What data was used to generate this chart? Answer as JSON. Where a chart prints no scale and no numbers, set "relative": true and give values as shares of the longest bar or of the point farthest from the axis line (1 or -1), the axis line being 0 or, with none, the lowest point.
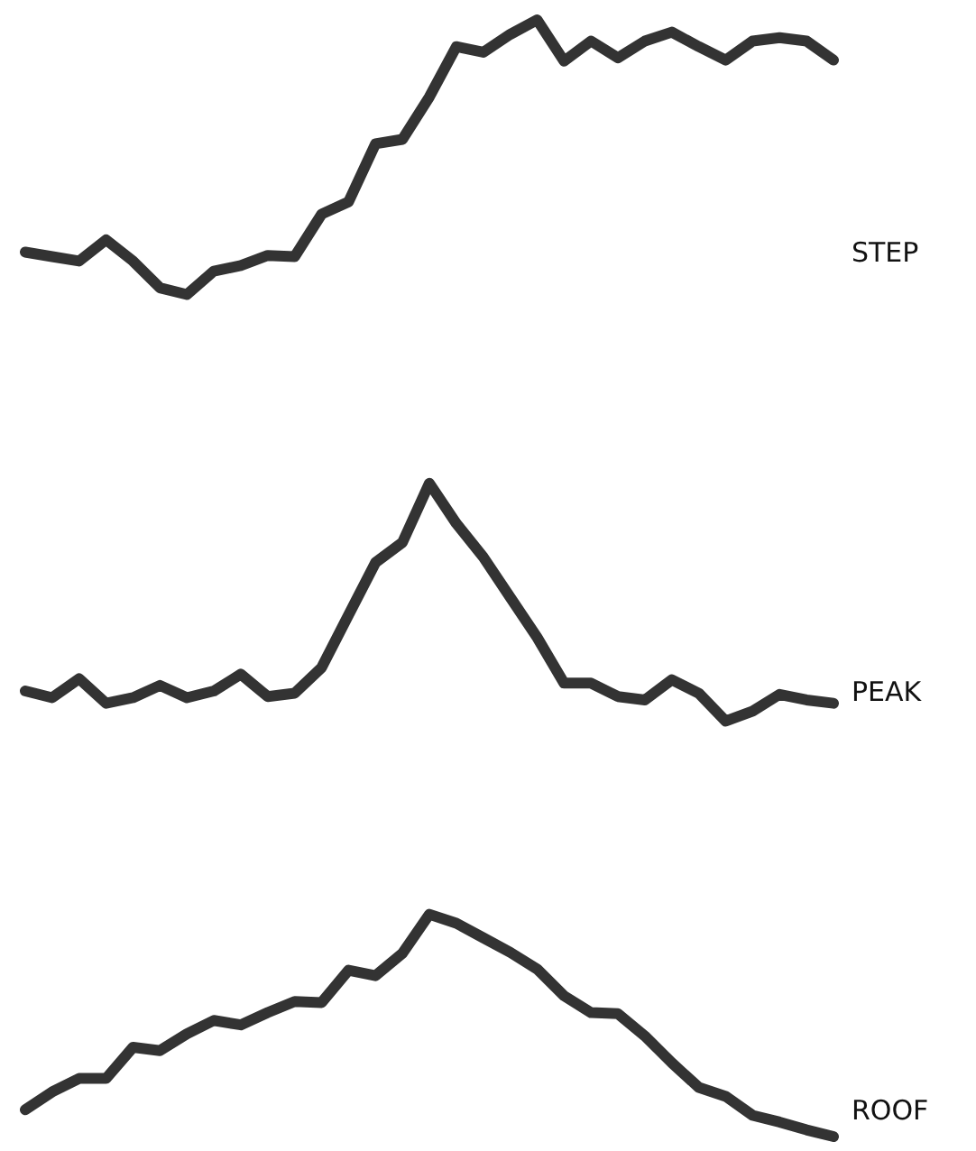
{
  "chart_data": {
    "type": "line",
    "relative": true,
    "categories": [
      null,
      null,
      null,
      null,
      null,
      null,
      null,
      null,
      null,
      null,
      null,
      null,
      null,
      null,
      null,
      null,
      null,
      null,
      null,
      null,
      null,
      null,
      null,
      null,
      null,
      null,
      null,
      null,
      null,
      null,
      null
    ],
    "series": [
      {
        "name": "STEP",
        "color": "#333333",
        "values": [
          0.792,
          0.788,
          0.784,
          0.803,
          0.784,
          0.76,
          0.754,
          0.775,
          0.78,
          0.789,
          0.788,
          0.826,
          0.837,
          0.889,
          0.893,
          0.931,
          0.976,
          0.971,
          0.987,
          1,
          0.963,
          0.981,
          0.966,
          0.981,
          0.989,
          0.976,
          0.964,
          0.981,
          0.984,
          0.981,
          0.964
        ]
      },
      {
        "name": "PEAK",
        "color": "#333333",
        "values": [
          0.399,
          0.393,
          0.41,
          0.388,
          0.393,
          0.404,
          0.393,
          0.399,
          0.414,
          0.394,
          0.397,
          0.42,
          0.467,
          0.514,
          0.532,
          0.585,
          0.549,
          0.519,
          0.483,
          0.447,
          0.406,
          0.406,
          0.394,
          0.391,
          0.409,
          0.397,
          0.372,
          0.381,
          0.396,
          0.391,
          0.388
        ]
      },
      {
        "name": "ROOF",
        "color": "#333333",
        "values": [
          0.024,
          0.04,
          0.052,
          0.052,
          0.08,
          0.077,
          0.092,
          0.104,
          0.1,
          0.111,
          0.121,
          0.12,
          0.149,
          0.144,
          0.164,
          0.199,
          0.191,
          0.178,
          0.165,
          0.15,
          0.126,
          0.111,
          0.11,
          0.09,
          0.066,
          0.044,
          0.036,
          0.019,
          0.013,
          0.006,
          0
        ]
      }
    ]
  }
}
